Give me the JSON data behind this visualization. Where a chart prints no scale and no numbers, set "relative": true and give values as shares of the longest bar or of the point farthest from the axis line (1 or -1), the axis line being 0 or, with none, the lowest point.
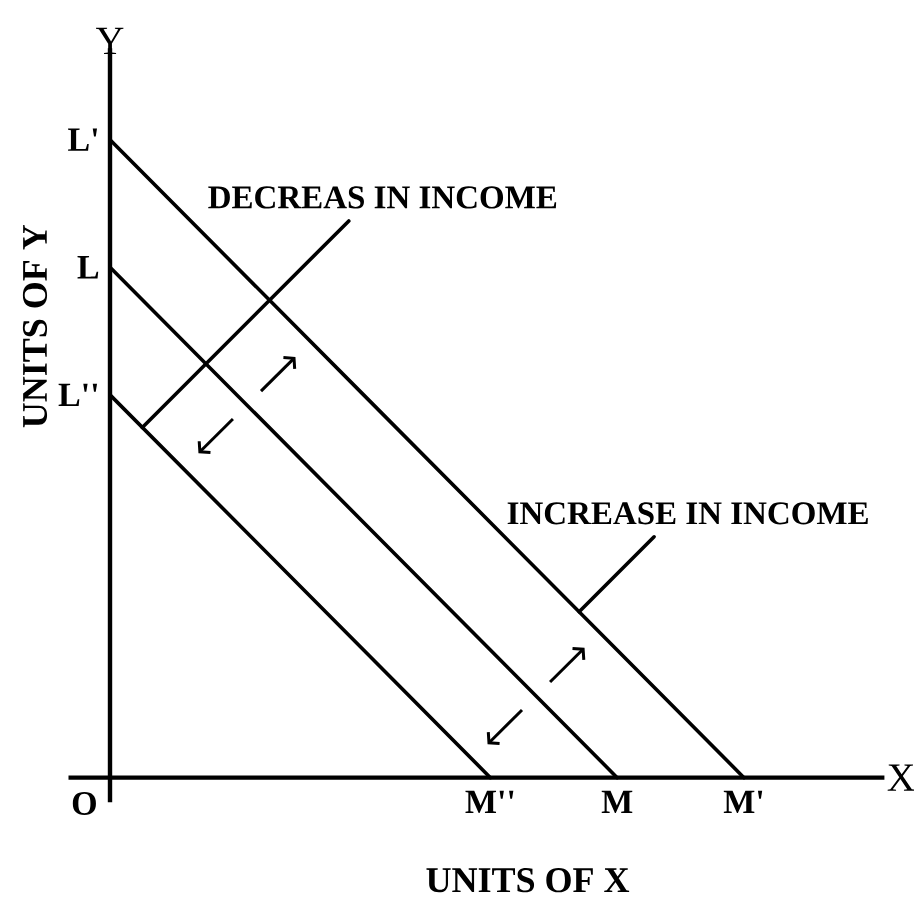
{
  "chart_data": {
    "type": "line",
    "xlabel": "UNITS OF X",
    "ylabel": "UNITS OF Y",
    "relative": true,
    "tick_labels": "x",
    "categories": [
      null,
      null,
      null,
      "M''",
      "M",
      "M'"
    ],
    "series": [
      {
        "color": "#000000",
        "values": [
          1,
          0.8,
          0.6,
          0.4,
          0.2,
          0
        ]
      },
      {
        "color": "#000000",
        "values": [
          0.8,
          0.6,
          0.4,
          0.2,
          0,
          null
        ]
      },
      {
        "color": "#000000",
        "values": [
          0.6,
          0.4,
          0.2,
          0,
          null,
          null
        ]
      }
    ],
    "annotations": [
      "Y",
      "X",
      "O",
      "DECREAS IN INCOME",
      "INCREASE IN INCOME",
      "L'",
      "L",
      "L''"
    ]
  }
}
